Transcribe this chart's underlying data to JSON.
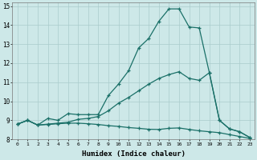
{
  "xlabel": "Humidex (Indice chaleur)",
  "xlim": [
    -0.5,
    23.5
  ],
  "ylim": [
    8,
    15.2
  ],
  "yticks": [
    8,
    9,
    10,
    11,
    12,
    13,
    14,
    15
  ],
  "xticks": [
    0,
    1,
    2,
    3,
    4,
    5,
    6,
    7,
    8,
    9,
    10,
    11,
    12,
    13,
    14,
    15,
    16,
    17,
    18,
    19,
    20,
    21,
    22,
    23
  ],
  "background_color": "#cde8e8",
  "grid_color": "#aacccc",
  "line_color": "#1a7068",
  "line1_x": [
    0,
    1,
    2,
    3,
    4,
    5,
    6,
    7,
    8,
    9,
    10,
    11,
    12,
    13,
    14,
    15,
    16,
    17,
    18,
    19,
    20,
    21,
    22,
    23
  ],
  "line1_y": [
    8.8,
    9.0,
    8.75,
    9.1,
    9.0,
    9.35,
    9.3,
    9.3,
    9.3,
    10.3,
    10.9,
    11.6,
    12.8,
    13.3,
    14.2,
    14.85,
    14.85,
    13.9,
    13.85,
    11.5,
    9.0,
    8.55,
    8.4,
    8.1
  ],
  "line2_x": [
    0,
    1,
    2,
    3,
    4,
    5,
    6,
    7,
    8,
    9,
    10,
    11,
    12,
    13,
    14,
    15,
    16,
    17,
    18,
    19,
    20,
    21,
    22,
    23
  ],
  "line2_y": [
    8.8,
    9.0,
    8.75,
    8.8,
    8.85,
    8.9,
    9.05,
    9.1,
    9.2,
    9.5,
    9.9,
    10.2,
    10.55,
    10.9,
    11.2,
    11.4,
    11.55,
    11.2,
    11.1,
    11.5,
    9.0,
    8.55,
    8.4,
    8.1
  ],
  "line3_x": [
    0,
    1,
    2,
    3,
    4,
    5,
    6,
    7,
    8,
    9,
    10,
    11,
    12,
    13,
    14,
    15,
    16,
    17,
    18,
    19,
    20,
    21,
    22,
    23
  ],
  "line3_y": [
    8.8,
    9.0,
    8.75,
    8.78,
    8.82,
    8.85,
    8.85,
    8.82,
    8.78,
    8.72,
    8.68,
    8.62,
    8.58,
    8.53,
    8.52,
    8.58,
    8.6,
    8.52,
    8.45,
    8.4,
    8.35,
    8.25,
    8.15,
    8.05
  ]
}
